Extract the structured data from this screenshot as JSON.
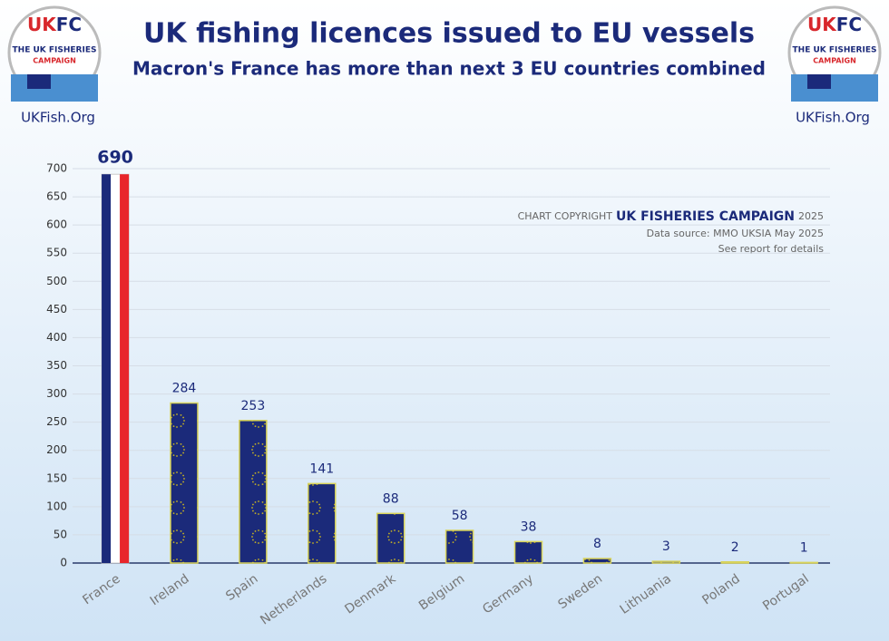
{
  "chart_data": {
    "type": "bar",
    "title": "UK fishing licences issued to EU vessels",
    "subtitle": "Macron's France has more than next 3 EU countries combined",
    "logo_mark": [
      "UK",
      "FC"
    ],
    "logo_lines": [
      "THE UK FISHERIES",
      "CAMPAIGN"
    ],
    "site": "UKFish.Org",
    "copyright": [
      "CHART COPYRIGHT",
      "UK FISHERIES CAMPAIGN",
      "2025"
    ],
    "source": "Data source: MMO UKSIA May 2025",
    "note": "See report for details",
    "categories": [
      "France",
      "Ireland",
      "Spain",
      "Netherlands",
      "Denmark",
      "Belgium",
      "Germany",
      "Sweden",
      "Lithuania",
      "Poland",
      "Portugal"
    ],
    "values": [
      690,
      284,
      253,
      141,
      88,
      58,
      38,
      8,
      3,
      2,
      1
    ],
    "bar_fill": [
      "tricolor",
      "eu",
      "eu",
      "eu",
      "eu",
      "eu",
      "eu",
      "eu",
      "eu",
      "eu",
      "eu"
    ],
    "color": "#1b2a7a",
    "ylim": [
      0,
      700
    ],
    "yticks": [
      0,
      50,
      100,
      150,
      200,
      250,
      300,
      350,
      400,
      450,
      500,
      550,
      600,
      650,
      700
    ],
    "grid": true
  }
}
